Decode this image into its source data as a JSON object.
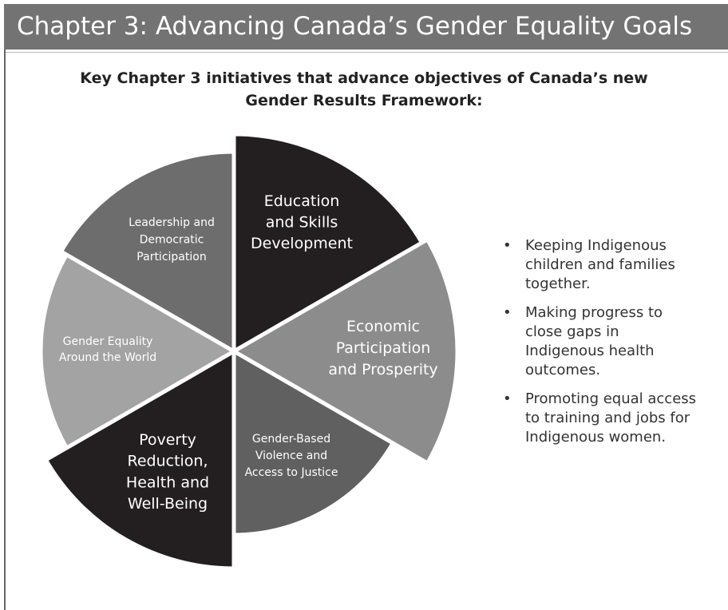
{
  "header": {
    "title": "Chapter 3: Advancing Canada’s Gender Equality Goals"
  },
  "subtitle": [
    "Key Chapter 3 initiatives that advance objectives of Canada’s new",
    "Gender Results Framework:"
  ],
  "segments": [
    {
      "lines": [
        "Education",
        "and Skills",
        "Development"
      ]
    },
    {
      "lines": [
        "Economic",
        "Participation",
        "and Prosperity"
      ]
    },
    {
      "lines": [
        "Gender-Based",
        "Violence and",
        "Access to Justice"
      ]
    },
    {
      "lines": [
        "Poverty",
        "Reduction,",
        "Health and",
        "Well-Being"
      ]
    },
    {
      "lines": [
        "Gender Equality",
        "Around the World"
      ]
    },
    {
      "lines": [
        "Leadership and",
        "Democratic",
        "Participation"
      ]
    }
  ],
  "bullets": [
    "Keeping Indigenous children and families together.",
    "Making progress to close gaps in Indigenous health outcomes.",
    "Promoting equal access to training and jobs for Indigenous women."
  ]
}
